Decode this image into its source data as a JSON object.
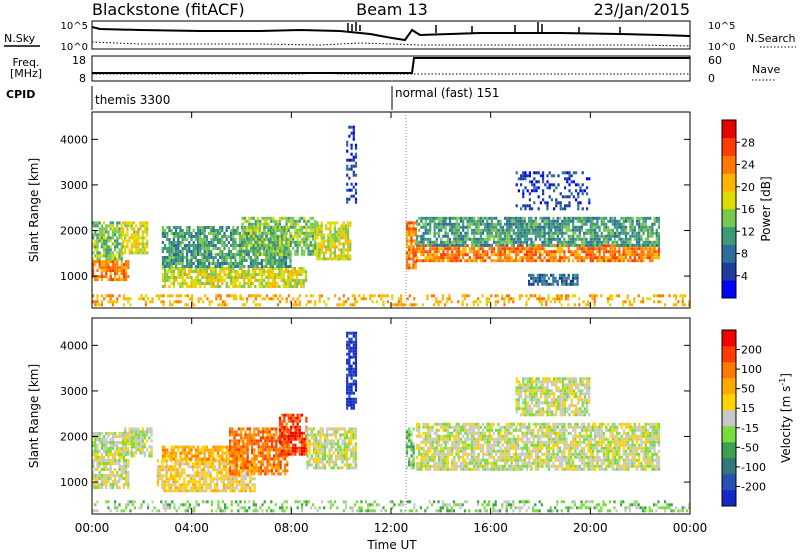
{
  "header": {
    "station": "Blackstone (fitACF)",
    "beam": "Beam 13",
    "date": "23/Jan/2015"
  },
  "top_panels": {
    "nsky_label": "N.Sky",
    "nsky_ticks": [
      "10^5",
      "10^0"
    ],
    "nsearch_label": "N.Search",
    "freq_label_1": "Freq.",
    "freq_label_2": "[MHz]",
    "freq_ticks": [
      "18",
      "8"
    ],
    "nave_label": "Nave",
    "nave_ticks": [
      "60",
      "0"
    ],
    "cpid_label": "CPID",
    "cpid_segments": [
      {
        "label": "themis 3300",
        "start_hour": 0
      },
      {
        "label": "normal (fast) 151",
        "start_hour": 12.6
      }
    ]
  },
  "colorbars": {
    "power": {
      "label": "Power [dB]",
      "ticks": [
        "28",
        "24",
        "20",
        "16",
        "12",
        "8",
        "4"
      ],
      "colors": [
        "#0000ff",
        "#1e3ca0",
        "#2d6e9b",
        "#3c9a78",
        "#78c850",
        "#dcdc00",
        "#ffb400",
        "#ff7800",
        "#ff3c00",
        "#e60000"
      ]
    },
    "velocity": {
      "label": "Velocity [m s",
      "label_sup": "-1",
      "label_end": "]",
      "ticks": [
        "200",
        "100",
        "50",
        "15",
        "-15",
        "-50",
        "-100",
        "-200"
      ],
      "colors": [
        "#1428c8",
        "#2850b4",
        "#327878",
        "#3ca050",
        "#78dc3c",
        "#c8c8c8",
        "#ffd200",
        "#ffaa00",
        "#ff7800",
        "#ff3c00",
        "#f00000"
      ]
    }
  },
  "chart_data": [
    {
      "type": "heatmap",
      "panel": "power",
      "ylabel": "Slant Range [km]",
      "yticks": [
        "1000",
        "2000",
        "3000",
        "4000"
      ],
      "ylim": [
        300,
        4600
      ],
      "xlim": [
        0,
        24
      ],
      "scatter_bands": [
        {
          "t0": 0.0,
          "t1": 1.5,
          "r0": 950,
          "r1": 1350,
          "level": 7
        },
        {
          "t0": 0.0,
          "t1": 1.2,
          "r0": 1350,
          "r1": 2200,
          "level": 4
        },
        {
          "t0": 1.2,
          "t1": 2.2,
          "r0": 1500,
          "r1": 2200,
          "level": 5
        },
        {
          "t0": 2.8,
          "t1": 8.6,
          "r0": 800,
          "r1": 1200,
          "level": 5
        },
        {
          "t0": 2.8,
          "t1": 8.0,
          "r0": 1200,
          "r1": 2100,
          "level": 3
        },
        {
          "t0": 6.0,
          "t1": 9.0,
          "r0": 1500,
          "r1": 2300,
          "level": 4
        },
        {
          "t0": 9.0,
          "t1": 10.4,
          "r0": 1400,
          "r1": 2200,
          "level": 5
        },
        {
          "t0": 10.2,
          "t1": 10.6,
          "r0": 2600,
          "r1": 4300,
          "level": 1
        },
        {
          "t0": 12.6,
          "t1": 13.0,
          "r0": 1200,
          "r1": 2200,
          "level": 7
        },
        {
          "t0": 13.0,
          "t1": 22.8,
          "r0": 1350,
          "r1": 1700,
          "level": 7
        },
        {
          "t0": 13.0,
          "t1": 22.8,
          "r0": 1700,
          "r1": 2300,
          "level": 3
        },
        {
          "t0": 17.0,
          "t1": 20.0,
          "r0": 2500,
          "r1": 3300,
          "level": 1
        },
        {
          "t0": 17.5,
          "t1": 19.5,
          "r0": 850,
          "r1": 1050,
          "level": 2
        },
        {
          "t0": 0.0,
          "t1": 24.0,
          "r0": 350,
          "r1": 600,
          "level": 6
        }
      ]
    },
    {
      "type": "heatmap",
      "panel": "velocity",
      "xlabel": "Time UT",
      "ylabel": "Slant Range [km]",
      "xticks": [
        "00:00",
        "04:00",
        "08:00",
        "12:00",
        "16:00",
        "20:00",
        "00:00"
      ],
      "yticks": [
        "1000",
        "2000",
        "3000",
        "4000"
      ],
      "ylim": [
        300,
        4600
      ],
      "xlim": [
        0,
        24
      ],
      "scatter_bands": [
        {
          "t0": 0.0,
          "t1": 1.5,
          "r0": 900,
          "r1": 2100,
          "level": 5
        },
        {
          "t0": 1.2,
          "t1": 2.4,
          "r0": 1600,
          "r1": 2200,
          "level": 5
        },
        {
          "t0": 2.6,
          "t1": 6.5,
          "r0": 800,
          "r1": 1500,
          "level": 6
        },
        {
          "t0": 2.8,
          "t1": 6.0,
          "r0": 1500,
          "r1": 1800,
          "level": 7
        },
        {
          "t0": 5.5,
          "t1": 7.8,
          "r0": 1200,
          "r1": 2200,
          "level": 8
        },
        {
          "t0": 7.5,
          "t1": 8.6,
          "r0": 1600,
          "r1": 2500,
          "level": 9
        },
        {
          "t0": 8.6,
          "t1": 10.6,
          "r0": 1300,
          "r1": 2200,
          "level": 5
        },
        {
          "t0": 10.2,
          "t1": 10.6,
          "r0": 2600,
          "r1": 4300,
          "level": 0
        },
        {
          "t0": 12.6,
          "t1": 12.9,
          "r0": 1300,
          "r1": 2200,
          "level": 4
        },
        {
          "t0": 13.0,
          "t1": 22.8,
          "r0": 1300,
          "r1": 2300,
          "level": 5
        },
        {
          "t0": 17.0,
          "t1": 20.0,
          "r0": 2500,
          "r1": 3300,
          "level": 5
        },
        {
          "t0": 0.0,
          "t1": 24.0,
          "r0": 350,
          "r1": 600,
          "level": 4
        }
      ]
    }
  ]
}
